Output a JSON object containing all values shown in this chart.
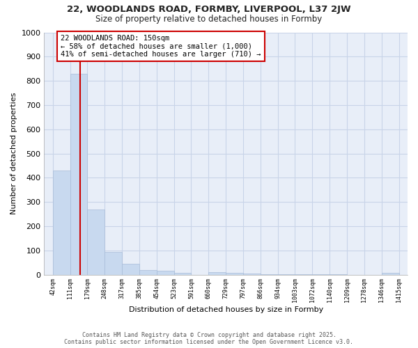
{
  "title_line1": "22, WOODLANDS ROAD, FORMBY, LIVERPOOL, L37 2JW",
  "title_line2": "Size of property relative to detached houses in Formby",
  "xlabel": "Distribution of detached houses by size in Formby",
  "ylabel": "Number of detached properties",
  "bar_edges": [
    42,
    111,
    179,
    248,
    317,
    385,
    454,
    523,
    591,
    660,
    729,
    797,
    866,
    934,
    1003,
    1072,
    1140,
    1209,
    1278,
    1346,
    1415
  ],
  "bar_heights": [
    430,
    830,
    270,
    95,
    45,
    20,
    15,
    8,
    0,
    10,
    8,
    5,
    3,
    2,
    1,
    1,
    1,
    0,
    0,
    8
  ],
  "bar_color": "#c8d9ef",
  "bar_edge_color": "#a8bcd8",
  "vline_x": 150,
  "vline_color": "#cc0000",
  "annotation_text": "22 WOODLANDS ROAD: 150sqm\n← 58% of detached houses are smaller (1,000)\n41% of semi-detached houses are larger (710) →",
  "annotation_box_facecolor": "#ffffff",
  "annotation_border_color": "#cc0000",
  "ylim": [
    0,
    1000
  ],
  "yticks": [
    0,
    100,
    200,
    300,
    400,
    500,
    600,
    700,
    800,
    900,
    1000
  ],
  "grid_color": "#c8d4e8",
  "background_color": "#ffffff",
  "plot_bg_color": "#e8eef8",
  "footer_line1": "Contains HM Land Registry data © Crown copyright and database right 2025.",
  "footer_line2": "Contains public sector information licensed under the Open Government Licence v3.0.",
  "tick_labels": [
    "42sqm",
    "111sqm",
    "179sqm",
    "248sqm",
    "317sqm",
    "385sqm",
    "454sqm",
    "523sqm",
    "591sqm",
    "660sqm",
    "729sqm",
    "797sqm",
    "866sqm",
    "934sqm",
    "1003sqm",
    "1072sqm",
    "1140sqm",
    "1209sqm",
    "1278sqm",
    "1346sqm",
    "1415sqm"
  ]
}
